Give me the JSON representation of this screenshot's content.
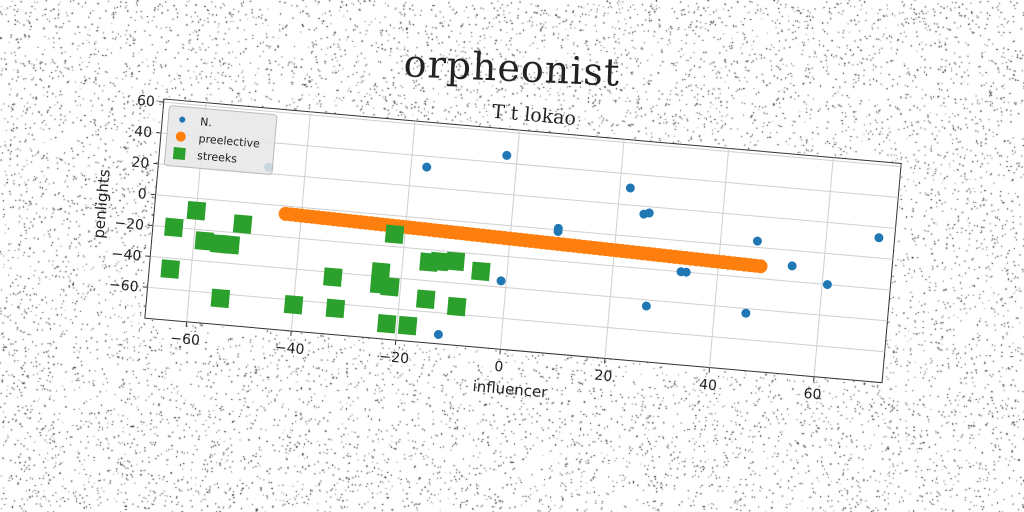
{
  "figure": {
    "suptitle": "orpheonist"
  },
  "chart_data": {
    "type": "scatter",
    "title": "T t lokao",
    "xlabel": "influencer",
    "ylabel": "penlights",
    "xlim": [
      -68,
      73
    ],
    "ylim": [
      -80,
      62
    ],
    "xticks": [
      -60,
      -40,
      -20,
      0,
      20,
      40,
      60
    ],
    "yticks": [
      -60,
      -40,
      -20,
      0,
      20,
      40,
      60
    ],
    "grid": true,
    "legend_position": "upper-left",
    "series": [
      {
        "name": "N.",
        "marker": "dot",
        "color": "#1f77b4",
        "points": [
          [
            -47,
            24
          ],
          [
            -17,
            33
          ],
          [
            -2,
            45
          ],
          [
            -1,
            -36
          ],
          [
            9,
            1
          ],
          [
            9,
            -1
          ],
          [
            22,
            31
          ],
          [
            25,
            15
          ],
          [
            26,
            16
          ],
          [
            27,
            -44
          ],
          [
            33,
            -20
          ],
          [
            34,
            -20
          ],
          [
            46,
            -43
          ],
          [
            47,
            4
          ],
          [
            54,
            -10
          ],
          [
            61,
            -20
          ],
          [
            70,
            13
          ],
          [
            -12,
            -74
          ]
        ]
      },
      {
        "name": "preelective",
        "marker": "circle",
        "color": "#ff7f0e",
        "line_from": [
          -43,
          -5
        ],
        "line_to": [
          48,
          -12
        ],
        "count": 90
      },
      {
        "name": "streeks",
        "marker": "square",
        "color": "#2ca02c",
        "points": [
          [
            -64,
            -20
          ],
          [
            -60,
            -8
          ],
          [
            -58,
            -27
          ],
          [
            -55,
            -28
          ],
          [
            -53,
            -28
          ],
          [
            -51,
            -14
          ],
          [
            -64,
            -47
          ],
          [
            -54,
            -63
          ],
          [
            -40,
            -63
          ],
          [
            -32,
            -63
          ],
          [
            -33,
            -43
          ],
          [
            -24,
            -37
          ],
          [
            -24,
            -45
          ],
          [
            -22,
            -46
          ],
          [
            -22,
            -12
          ],
          [
            -22,
            -70
          ],
          [
            -15,
            -28
          ],
          [
            -13,
            -27
          ],
          [
            -10,
            -26
          ],
          [
            -5,
            -31
          ],
          [
            -15,
            -52
          ],
          [
            -18,
            -70
          ],
          [
            -9,
            -55
          ]
        ]
      }
    ]
  }
}
